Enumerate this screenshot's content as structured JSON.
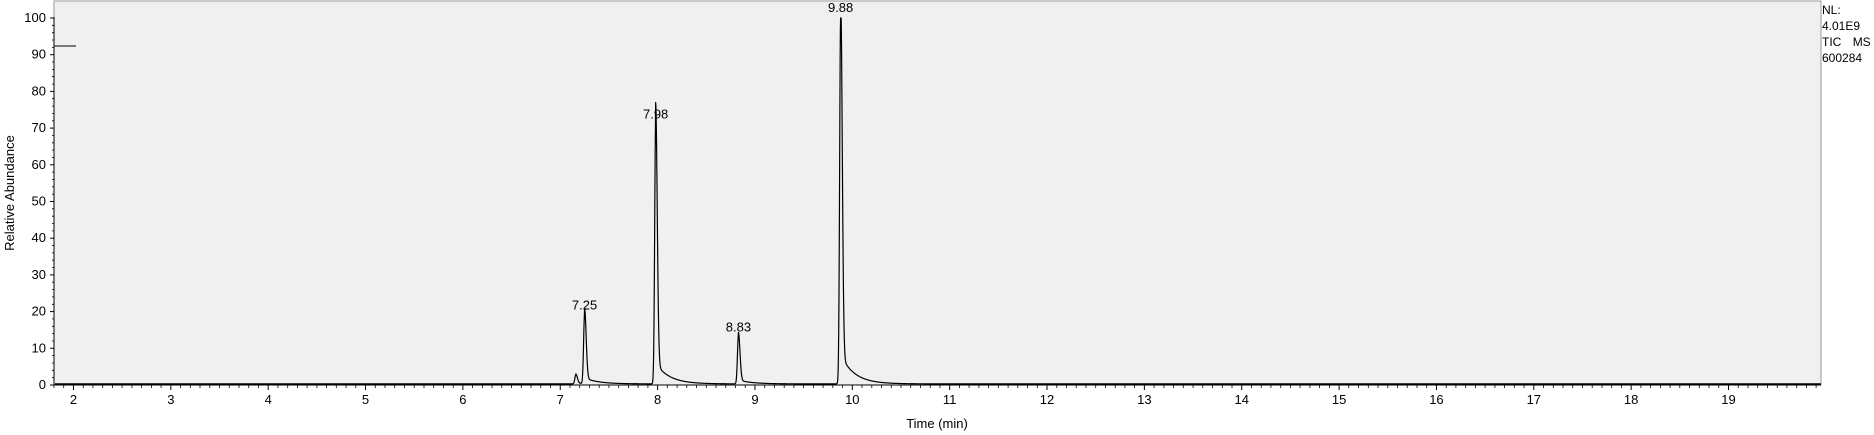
{
  "chart_data": {
    "type": "line",
    "xlabel": "Time (min)",
    "ylabel": "Relative Abundance",
    "xlim": [
      1.8,
      19.95
    ],
    "ylim": [
      0,
      100
    ],
    "x_ticks": [
      "2",
      "3",
      "4",
      "5",
      "6",
      "7",
      "8",
      "9",
      "10",
      "11",
      "12",
      "13",
      "14",
      "15",
      "16",
      "17",
      "18",
      "19"
    ],
    "y_ticks": [
      "0",
      "10",
      "20",
      "30",
      "40",
      "50",
      "60",
      "70",
      "80",
      "90",
      "100"
    ],
    "grid": false,
    "peaks": [
      {
        "label": "7.25",
        "rt": 7.25,
        "height": 19
      },
      {
        "label": "7.98",
        "rt": 7.98,
        "height": 71
      },
      {
        "label": "8.83",
        "rt": 8.83,
        "height": 13
      },
      {
        "label": "9.88",
        "rt": 9.88,
        "height": 100
      }
    ],
    "minor_peaks": [
      {
        "rt": 7.16,
        "height": 2.5
      }
    ],
    "baseline": 0.3
  },
  "side_info": {
    "nl_label": "NL:",
    "nl_value": "4.01E9",
    "trace_type": "TIC",
    "trace_mode": "MS",
    "file_id": "600284"
  },
  "colors": {
    "plot_background": "#f0f0f0",
    "trace": "#000000",
    "axis": "#000000"
  }
}
